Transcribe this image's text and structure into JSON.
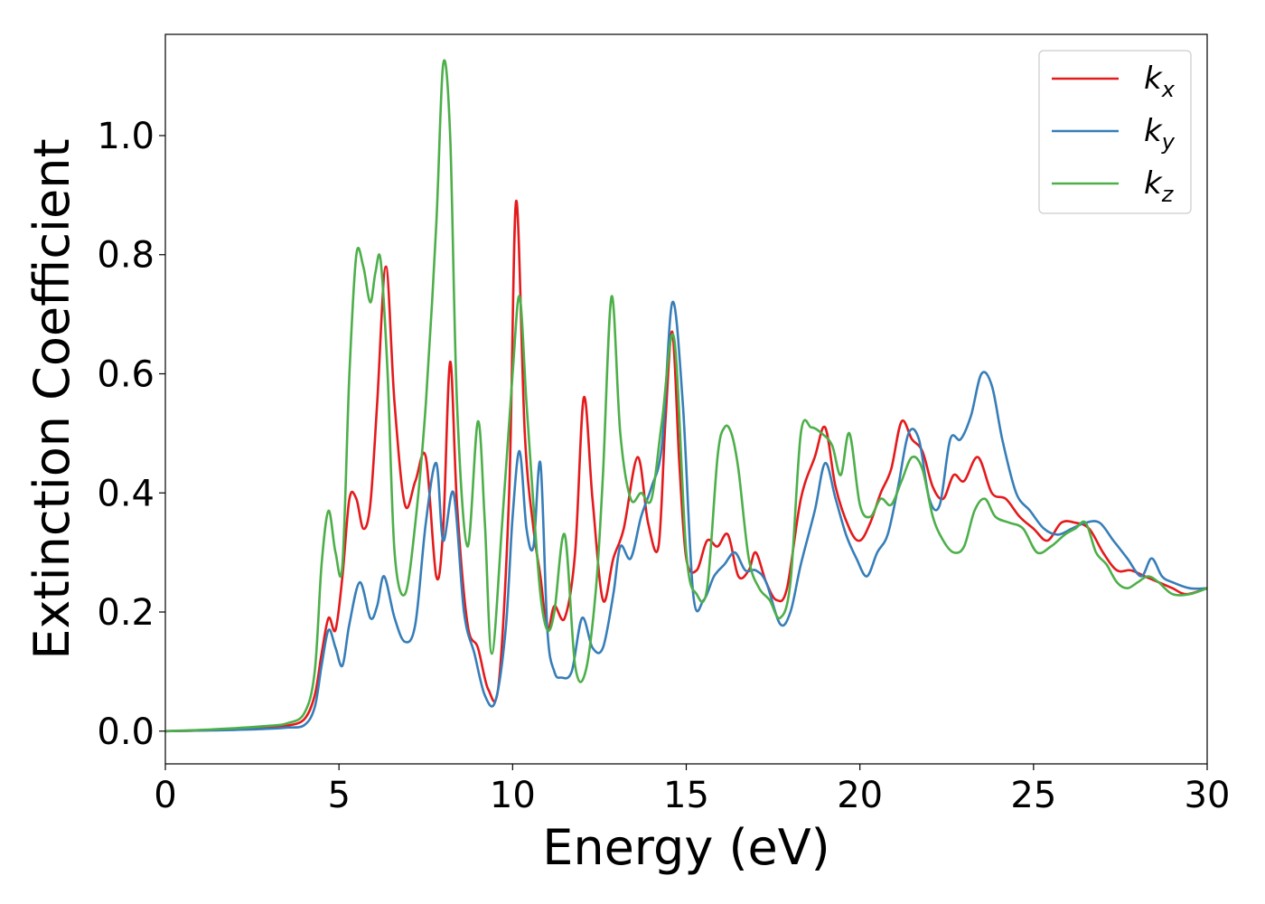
{
  "chart_data": {
    "type": "line",
    "xlabel": "Energy (eV)",
    "ylabel": "Extinction Coefficient",
    "xlim": [
      0,
      30
    ],
    "ylim": [
      -0.055,
      1.17
    ],
    "xticks": [
      0,
      5,
      10,
      15,
      20,
      25,
      30
    ],
    "xtick_labels": [
      "0",
      "5",
      "10",
      "15",
      "20",
      "25",
      "30"
    ],
    "yticks": [
      0.0,
      0.2,
      0.4,
      0.6,
      0.8,
      1.0
    ],
    "ytick_labels": [
      "0.0",
      "0.2",
      "0.4",
      "0.6",
      "0.8",
      "1.0"
    ],
    "grid": false,
    "legend_position": "top-right",
    "series": [
      {
        "name": "kx",
        "symbol": "k",
        "subscript": "x",
        "color": "#e41a1c",
        "x": [
          0,
          1,
          2,
          3,
          3.5,
          4.0,
          4.3,
          4.5,
          4.7,
          4.9,
          5.1,
          5.3,
          5.5,
          5.7,
          5.9,
          6.1,
          6.35,
          6.6,
          6.9,
          7.2,
          7.5,
          7.8,
          8.0,
          8.2,
          8.4,
          8.7,
          9.0,
          9.3,
          9.6,
          9.9,
          10.1,
          10.35,
          10.6,
          10.8,
          11.0,
          11.2,
          11.5,
          11.8,
          12.05,
          12.3,
          12.6,
          12.9,
          13.2,
          13.6,
          13.9,
          14.2,
          14.4,
          14.6,
          14.8,
          15.0,
          15.3,
          15.6,
          15.9,
          16.2,
          16.5,
          16.8,
          17.0,
          17.3,
          17.6,
          17.9,
          18.3,
          18.7,
          19.0,
          19.3,
          19.7,
          20.0,
          20.3,
          20.6,
          20.9,
          21.2,
          21.5,
          21.8,
          22.1,
          22.4,
          22.7,
          23.0,
          23.4,
          23.8,
          24.2,
          24.6,
          25.0,
          25.4,
          25.8,
          26.2,
          26.6,
          27.0,
          27.4,
          27.8,
          28.2,
          28.6,
          29.0,
          29.4,
          30.0
        ],
        "y": [
          0.0,
          0.001,
          0.003,
          0.006,
          0.009,
          0.02,
          0.06,
          0.13,
          0.19,
          0.17,
          0.26,
          0.39,
          0.39,
          0.34,
          0.38,
          0.55,
          0.78,
          0.55,
          0.38,
          0.42,
          0.46,
          0.26,
          0.34,
          0.62,
          0.38,
          0.18,
          0.14,
          0.07,
          0.08,
          0.4,
          0.89,
          0.5,
          0.34,
          0.26,
          0.17,
          0.21,
          0.19,
          0.3,
          0.56,
          0.39,
          0.22,
          0.29,
          0.34,
          0.46,
          0.35,
          0.31,
          0.52,
          0.67,
          0.45,
          0.29,
          0.27,
          0.32,
          0.31,
          0.33,
          0.26,
          0.27,
          0.3,
          0.25,
          0.22,
          0.24,
          0.39,
          0.46,
          0.51,
          0.41,
          0.34,
          0.32,
          0.35,
          0.4,
          0.44,
          0.52,
          0.49,
          0.47,
          0.41,
          0.39,
          0.43,
          0.42,
          0.46,
          0.4,
          0.39,
          0.36,
          0.34,
          0.32,
          0.35,
          0.35,
          0.34,
          0.3,
          0.27,
          0.27,
          0.26,
          0.25,
          0.24,
          0.23,
          0.24
        ]
      },
      {
        "name": "ky",
        "symbol": "k",
        "subscript": "y",
        "color": "#377eb8",
        "x": [
          0,
          1,
          2,
          3,
          3.5,
          4.0,
          4.3,
          4.5,
          4.7,
          4.9,
          5.1,
          5.3,
          5.6,
          5.9,
          6.1,
          6.3,
          6.6,
          6.9,
          7.2,
          7.5,
          7.8,
          8.0,
          8.3,
          8.6,
          8.9,
          9.2,
          9.5,
          9.8,
          10.0,
          10.2,
          10.4,
          10.6,
          10.8,
          11.0,
          11.2,
          11.4,
          11.7,
          12.0,
          12.3,
          12.6,
          12.9,
          13.1,
          13.4,
          13.7,
          14.0,
          14.3,
          14.6,
          14.9,
          15.2,
          15.5,
          15.8,
          16.1,
          16.4,
          16.7,
          17.0,
          17.3,
          17.7,
          18.0,
          18.3,
          18.7,
          19.0,
          19.3,
          19.6,
          19.9,
          20.2,
          20.5,
          20.8,
          21.1,
          21.4,
          21.7,
          22.0,
          22.3,
          22.6,
          22.9,
          23.2,
          23.5,
          23.8,
          24.1,
          24.5,
          24.9,
          25.3,
          25.7,
          26.1,
          26.5,
          26.9,
          27.3,
          27.7,
          28.1,
          28.4,
          28.7,
          29.0,
          29.5,
          30.0
        ],
        "y": [
          0.0,
          0.001,
          0.002,
          0.004,
          0.006,
          0.01,
          0.04,
          0.11,
          0.17,
          0.14,
          0.11,
          0.18,
          0.25,
          0.19,
          0.21,
          0.26,
          0.19,
          0.15,
          0.18,
          0.35,
          0.45,
          0.32,
          0.4,
          0.2,
          0.13,
          0.06,
          0.05,
          0.17,
          0.36,
          0.47,
          0.34,
          0.31,
          0.45,
          0.17,
          0.1,
          0.09,
          0.1,
          0.19,
          0.14,
          0.14,
          0.23,
          0.31,
          0.29,
          0.36,
          0.41,
          0.48,
          0.72,
          0.55,
          0.23,
          0.22,
          0.26,
          0.28,
          0.3,
          0.27,
          0.27,
          0.25,
          0.18,
          0.2,
          0.28,
          0.37,
          0.45,
          0.39,
          0.33,
          0.29,
          0.26,
          0.3,
          0.33,
          0.41,
          0.5,
          0.49,
          0.39,
          0.38,
          0.49,
          0.49,
          0.53,
          0.6,
          0.58,
          0.49,
          0.4,
          0.37,
          0.34,
          0.33,
          0.34,
          0.35,
          0.35,
          0.32,
          0.29,
          0.26,
          0.29,
          0.26,
          0.25,
          0.24,
          0.24
        ]
      },
      {
        "name": "kz",
        "symbol": "k",
        "subscript": "z",
        "color": "#4daf4a",
        "x": [
          0,
          1,
          2,
          3,
          3.5,
          4.0,
          4.3,
          4.5,
          4.7,
          4.9,
          5.1,
          5.3,
          5.5,
          5.7,
          5.9,
          6.05,
          6.2,
          6.4,
          6.6,
          6.9,
          7.2,
          7.5,
          7.8,
          8.0,
          8.2,
          8.4,
          8.7,
          9.0,
          9.2,
          9.4,
          9.7,
          10.0,
          10.2,
          10.4,
          10.6,
          10.8,
          11.0,
          11.2,
          11.5,
          11.8,
          12.1,
          12.4,
          12.6,
          12.85,
          13.1,
          13.4,
          13.7,
          14.0,
          14.3,
          14.65,
          15.0,
          15.3,
          15.6,
          15.9,
          16.1,
          16.3,
          16.5,
          16.8,
          17.1,
          17.4,
          17.7,
          18.0,
          18.3,
          18.6,
          18.9,
          19.2,
          19.45,
          19.7,
          20.0,
          20.3,
          20.6,
          20.9,
          21.2,
          21.5,
          21.8,
          22.1,
          22.4,
          22.7,
          23.0,
          23.3,
          23.6,
          23.9,
          24.3,
          24.7,
          25.1,
          25.5,
          25.9,
          26.2,
          26.5,
          26.8,
          27.1,
          27.4,
          27.7,
          28.0,
          28.3,
          28.6,
          29.0,
          29.5,
          30.0
        ],
        "y": [
          0.0,
          0.002,
          0.005,
          0.009,
          0.013,
          0.03,
          0.1,
          0.28,
          0.37,
          0.3,
          0.28,
          0.6,
          0.8,
          0.78,
          0.72,
          0.77,
          0.79,
          0.6,
          0.3,
          0.23,
          0.35,
          0.55,
          0.85,
          1.12,
          1.0,
          0.55,
          0.31,
          0.52,
          0.35,
          0.13,
          0.35,
          0.6,
          0.73,
          0.55,
          0.38,
          0.23,
          0.17,
          0.2,
          0.33,
          0.11,
          0.1,
          0.24,
          0.43,
          0.73,
          0.5,
          0.39,
          0.4,
          0.39,
          0.52,
          0.66,
          0.3,
          0.23,
          0.24,
          0.46,
          0.51,
          0.5,
          0.44,
          0.29,
          0.24,
          0.22,
          0.19,
          0.25,
          0.5,
          0.51,
          0.5,
          0.48,
          0.43,
          0.5,
          0.38,
          0.36,
          0.39,
          0.38,
          0.42,
          0.46,
          0.44,
          0.36,
          0.32,
          0.3,
          0.31,
          0.37,
          0.39,
          0.36,
          0.35,
          0.34,
          0.3,
          0.31,
          0.33,
          0.34,
          0.35,
          0.3,
          0.28,
          0.25,
          0.24,
          0.25,
          0.26,
          0.25,
          0.23,
          0.23,
          0.24
        ]
      }
    ]
  }
}
